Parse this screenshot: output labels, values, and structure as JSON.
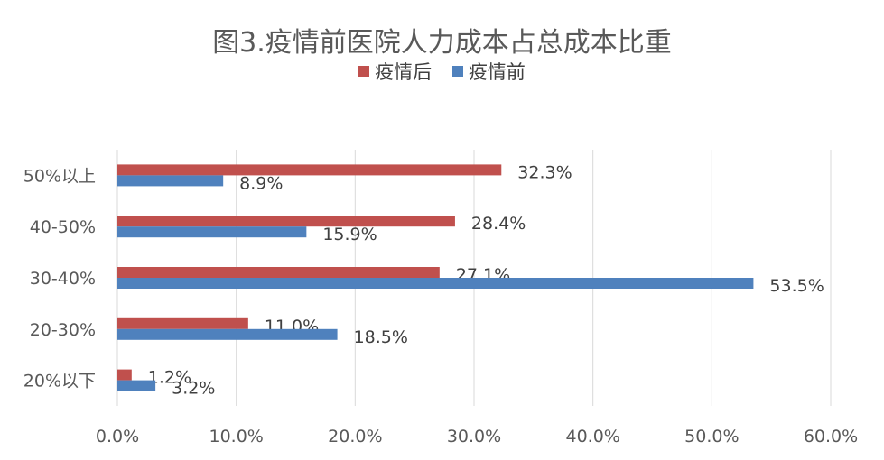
{
  "chart_data": {
    "type": "bar",
    "orientation": "horizontal",
    "title": "图3.疫情前医院人力成本占总成本比重",
    "categories": [
      "50%以上",
      "40-50%",
      "30-40%",
      "20-30%",
      "20%以下"
    ],
    "series": [
      {
        "name": "疫情后",
        "color": "#C0504D",
        "values": [
          32.3,
          28.4,
          27.1,
          11.0,
          1.2
        ],
        "labels": [
          "32.3%",
          "28.4%",
          "27.1%",
          "11.0%",
          "1.2%"
        ]
      },
      {
        "name": "疫情前",
        "color": "#4F81BD",
        "values": [
          8.9,
          15.9,
          53.5,
          18.5,
          3.2
        ],
        "labels": [
          "8.9%",
          "15.9%",
          "53.5%",
          "18.5%",
          "3.2%"
        ]
      }
    ],
    "xlim": [
      0,
      60
    ],
    "xticks": [
      0,
      10,
      20,
      30,
      40,
      50,
      60
    ],
    "xtick_labels": [
      "0.0%",
      "10.0%",
      "20.0%",
      "30.0%",
      "40.0%",
      "50.0%",
      "60.0%"
    ],
    "grid": "vertical",
    "legend_position": "top"
  }
}
